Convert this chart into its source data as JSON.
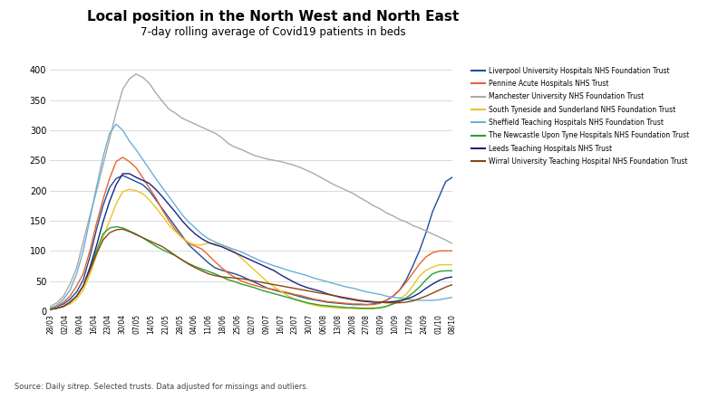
{
  "title": "Local position in the North West and North East",
  "subtitle": "7-day rolling average of Covid19 patients in beds",
  "source_text": "Source: Daily sitrep. Selected trusts. Data adjusted for missings and outliers.",
  "ylim": [
    0,
    410
  ],
  "yticks": [
    0,
    50,
    100,
    150,
    200,
    250,
    300,
    350,
    400
  ],
  "series": [
    {
      "name": "Liverpool University Hospitals NHS Foundation Trust",
      "color": "#1F4E9B",
      "values": [
        5,
        8,
        12,
        20,
        32,
        52,
        90,
        135,
        175,
        205,
        220,
        225,
        220,
        215,
        210,
        200,
        185,
        170,
        155,
        140,
        125,
        110,
        100,
        90,
        80,
        72,
        68,
        65,
        62,
        58,
        53,
        48,
        43,
        38,
        35,
        32,
        30,
        27,
        24,
        21,
        19,
        17,
        15,
        14,
        13,
        12,
        11,
        11,
        11,
        12,
        14,
        18,
        25,
        35,
        52,
        75,
        100,
        130,
        165,
        190,
        215,
        222
      ]
    },
    {
      "name": "Pennine Acute Hospitals NHS Trust",
      "color": "#E8642A",
      "values": [
        5,
        8,
        15,
        25,
        42,
        62,
        100,
        145,
        185,
        220,
        248,
        255,
        248,
        238,
        222,
        205,
        188,
        168,
        150,
        135,
        122,
        112,
        108,
        103,
        93,
        82,
        72,
        63,
        56,
        50,
        46,
        43,
        40,
        38,
        36,
        33,
        31,
        28,
        26,
        23,
        20,
        18,
        16,
        15,
        14,
        13,
        12,
        12,
        11,
        11,
        13,
        18,
        25,
        35,
        48,
        63,
        78,
        90,
        97,
        100,
        100,
        100
      ]
    },
    {
      "name": "Manchester University NHS Foundation Trust",
      "color": "#AAAAAA",
      "values": [
        8,
        14,
        25,
        45,
        72,
        115,
        158,
        198,
        242,
        285,
        330,
        368,
        385,
        393,
        388,
        378,
        362,
        348,
        335,
        328,
        320,
        315,
        310,
        305,
        300,
        295,
        288,
        278,
        272,
        268,
        263,
        258,
        255,
        252,
        250,
        248,
        245,
        242,
        238,
        233,
        228,
        222,
        216,
        210,
        205,
        200,
        195,
        188,
        182,
        175,
        170,
        163,
        158,
        152,
        148,
        142,
        138,
        133,
        128,
        123,
        118,
        112
      ]
    },
    {
      "name": "South Tyneside and Sunderland NHS Foundation Trust",
      "color": "#E8C42A",
      "values": [
        3,
        5,
        8,
        12,
        20,
        35,
        60,
        92,
        122,
        150,
        178,
        198,
        202,
        200,
        195,
        185,
        172,
        158,
        143,
        132,
        122,
        114,
        110,
        110,
        113,
        112,
        110,
        105,
        98,
        88,
        78,
        68,
        58,
        48,
        40,
        33,
        26,
        20,
        16,
        13,
        10,
        8,
        7,
        6,
        5,
        5,
        4,
        4,
        4,
        4,
        5,
        8,
        13,
        20,
        28,
        42,
        58,
        68,
        73,
        77,
        77,
        77
      ]
    },
    {
      "name": "Sheffield Teaching Hospitals NHS Foundation Trust",
      "color": "#6BAED6",
      "values": [
        5,
        10,
        20,
        35,
        62,
        100,
        152,
        205,
        255,
        295,
        310,
        300,
        282,
        268,
        252,
        236,
        220,
        205,
        190,
        175,
        160,
        148,
        138,
        128,
        120,
        115,
        110,
        106,
        102,
        98,
        93,
        88,
        83,
        79,
        75,
        72,
        68,
        65,
        62,
        59,
        55,
        52,
        49,
        46,
        43,
        40,
        38,
        35,
        32,
        30,
        28,
        25,
        23,
        22,
        20,
        19,
        18,
        18,
        18,
        19,
        21,
        23
      ]
    },
    {
      "name": "The Newcastle Upon Tyne Hospitals NHS Foundation Trust",
      "color": "#2CA02C",
      "values": [
        3,
        5,
        8,
        15,
        25,
        42,
        70,
        100,
        128,
        138,
        140,
        138,
        133,
        128,
        122,
        115,
        108,
        102,
        97,
        92,
        85,
        79,
        74,
        70,
        66,
        62,
        57,
        52,
        49,
        45,
        42,
        39,
        35,
        32,
        29,
        26,
        23,
        20,
        17,
        14,
        12,
        10,
        9,
        8,
        7,
        6,
        6,
        5,
        5,
        5,
        6,
        8,
        12,
        16,
        22,
        30,
        40,
        52,
        62,
        66,
        67,
        67
      ]
    },
    {
      "name": "Leeds Teaching Hospitals NHS Trust",
      "color": "#1A237E",
      "values": [
        3,
        5,
        8,
        15,
        25,
        42,
        72,
        108,
        148,
        182,
        210,
        228,
        228,
        222,
        217,
        212,
        202,
        190,
        177,
        164,
        150,
        138,
        128,
        120,
        114,
        110,
        107,
        102,
        97,
        92,
        87,
        82,
        77,
        72,
        67,
        60,
        54,
        48,
        43,
        39,
        36,
        33,
        29,
        26,
        23,
        21,
        19,
        17,
        16,
        15,
        15,
        15,
        16,
        17,
        20,
        24,
        30,
        38,
        45,
        51,
        55,
        57
      ]
    },
    {
      "name": "Wirral University Teaching Hospital NHS Foundation Trust",
      "color": "#8B4513",
      "values": [
        3,
        5,
        8,
        15,
        25,
        42,
        67,
        95,
        118,
        130,
        135,
        136,
        132,
        127,
        122,
        117,
        112,
        107,
        100,
        92,
        85,
        78,
        72,
        67,
        62,
        59,
        57,
        56,
        55,
        54,
        52,
        50,
        48,
        46,
        44,
        42,
        40,
        38,
        36,
        34,
        32,
        30,
        28,
        26,
        24,
        22,
        20,
        18,
        17,
        16,
        15,
        14,
        14,
        14,
        15,
        17,
        21,
        25,
        30,
        35,
        40,
        44
      ]
    }
  ],
  "xtick_labels": [
    "28/03",
    "02/04",
    "09/04",
    "16/04",
    "23/04",
    "30/04",
    "07/05",
    "14/05",
    "21/05",
    "28/05",
    "04/06",
    "11/06",
    "18/06",
    "25/06",
    "02/07",
    "09/07",
    "16/07",
    "23/07",
    "30/07",
    "06/08",
    "13/08",
    "20/08",
    "27/08",
    "03/09",
    "10/09",
    "17/09",
    "24/09",
    "01/10",
    "08/10"
  ]
}
